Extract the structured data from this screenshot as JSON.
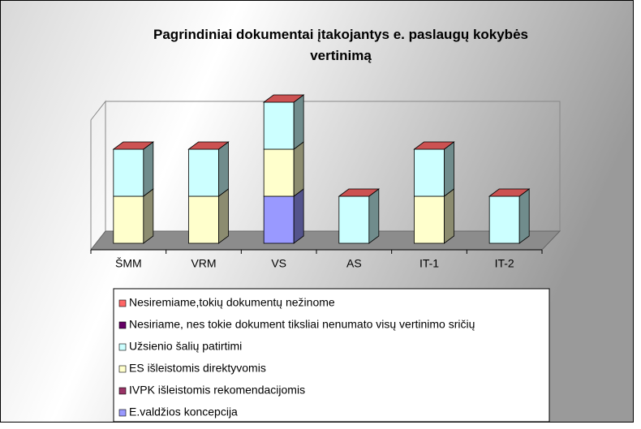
{
  "chart_data": {
    "type": "bar3d_stacked",
    "title": "Pagrindiniai dokumentai įtakojantys e. paslaugų kokybės vertinimą",
    "categories": [
      "ŠMM",
      "VRM",
      "VS",
      "AS",
      "IT-1",
      "IT-2"
    ],
    "ylim": [
      0,
      3
    ],
    "series": [
      {
        "name": "E.valdžios koncepcija",
        "color": "#9999ff",
        "values": [
          0,
          0,
          1,
          0,
          0,
          0
        ]
      },
      {
        "name": "IVPK išleistomis rekomendacijomis",
        "color": "#993366",
        "values": [
          0,
          0,
          0,
          0,
          0,
          0
        ]
      },
      {
        "name": "ES išleistomis direktyvomis",
        "color": "#ffffcc",
        "values": [
          1,
          1,
          1,
          0,
          1,
          0
        ]
      },
      {
        "name": "Užsienio šalių patirtimi",
        "color": "#ccffff",
        "values": [
          1,
          1,
          1,
          1,
          1,
          1
        ]
      },
      {
        "name": "Nesiriame, nes tokie dokument tiksliai nenumato visų vertinimo sričių",
        "color": "#660066",
        "values": [
          0,
          0,
          0,
          0,
          0,
          0
        ]
      },
      {
        "name": "Nesiremiame,tokių dokumentų nežinome",
        "color": "#ff6666",
        "values": [
          0,
          0,
          0,
          0,
          0,
          0
        ]
      }
    ]
  }
}
